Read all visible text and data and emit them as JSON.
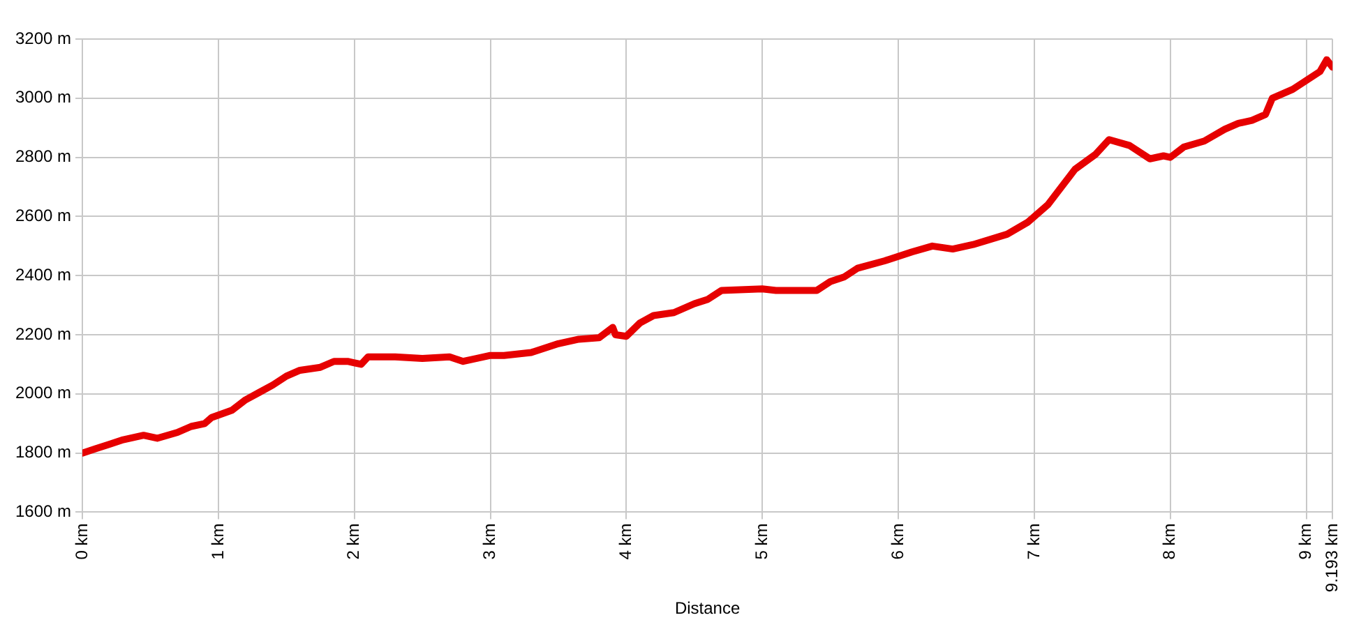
{
  "chart_data": {
    "type": "line",
    "xlabel": "Distance",
    "x": [
      0,
      0.1,
      0.2,
      0.3,
      0.45,
      0.55,
      0.7,
      0.8,
      0.9,
      0.95,
      1.1,
      1.2,
      1.3,
      1.4,
      1.5,
      1.6,
      1.75,
      1.85,
      1.95,
      2.05,
      2.1,
      2.3,
      2.5,
      2.7,
      2.8,
      3.0,
      3.1,
      3.3,
      3.5,
      3.65,
      3.8,
      3.9,
      3.92,
      4.0,
      4.1,
      4.2,
      4.35,
      4.5,
      4.6,
      4.7,
      5.0,
      5.1,
      5.4,
      5.5,
      5.6,
      5.7,
      5.9,
      6.1,
      6.25,
      6.4,
      6.55,
      6.8,
      6.95,
      7.1,
      7.2,
      7.3,
      7.45,
      7.55,
      7.7,
      7.85,
      7.95,
      8.0,
      8.1,
      8.25,
      8.4,
      8.5,
      8.6,
      8.7,
      8.75,
      8.9,
      9.0,
      9.1,
      9.15,
      9.193
    ],
    "series": [
      {
        "color": "#e60000",
        "values": [
          1800,
          1815,
          1830,
          1845,
          1860,
          1850,
          1870,
          1890,
          1900,
          1920,
          1945,
          1980,
          2005,
          2030,
          2060,
          2080,
          2090,
          2110,
          2110,
          2100,
          2125,
          2125,
          2120,
          2125,
          2110,
          2130,
          2130,
          2140,
          2170,
          2185,
          2190,
          2225,
          2200,
          2195,
          2240,
          2265,
          2275,
          2305,
          2320,
          2350,
          2355,
          2350,
          2350,
          2380,
          2395,
          2425,
          2450,
          2480,
          2500,
          2490,
          2505,
          2540,
          2580,
          2640,
          2700,
          2760,
          2810,
          2860,
          2840,
          2795,
          2805,
          2800,
          2835,
          2855,
          2895,
          2915,
          2925,
          2945,
          3000,
          3030,
          3060,
          3090,
          3130,
          3105
        ]
      }
    ],
    "xlim": [
      0,
      9.193
    ],
    "xticks": [
      {
        "value": 0,
        "label": "0 km"
      },
      {
        "value": 1,
        "label": "1 km"
      },
      {
        "value": 2,
        "label": "2 km"
      },
      {
        "value": 3,
        "label": "3 km"
      },
      {
        "value": 4,
        "label": "4 km"
      },
      {
        "value": 5,
        "label": "5 km"
      },
      {
        "value": 6,
        "label": "6 km"
      },
      {
        "value": 7,
        "label": "7 km"
      },
      {
        "value": 8,
        "label": "8 km"
      },
      {
        "value": 9,
        "label": "9 km"
      },
      {
        "value": 9.193,
        "label": "9.193 km"
      }
    ],
    "ylim": [
      1600,
      3200
    ],
    "yticks": [
      {
        "value": 1600,
        "label": "1600 m"
      },
      {
        "value": 1800,
        "label": "1800 m"
      },
      {
        "value": 2000,
        "label": "2000 m"
      },
      {
        "value": 2200,
        "label": "2200 m"
      },
      {
        "value": 2400,
        "label": "2400 m"
      },
      {
        "value": 2600,
        "label": "2600 m"
      },
      {
        "value": 2800,
        "label": "2800 m"
      },
      {
        "value": 3000,
        "label": "3000 m"
      },
      {
        "value": 3200,
        "label": "3200 m"
      }
    ],
    "grid": true,
    "marker": "none",
    "line_style": "solid"
  }
}
